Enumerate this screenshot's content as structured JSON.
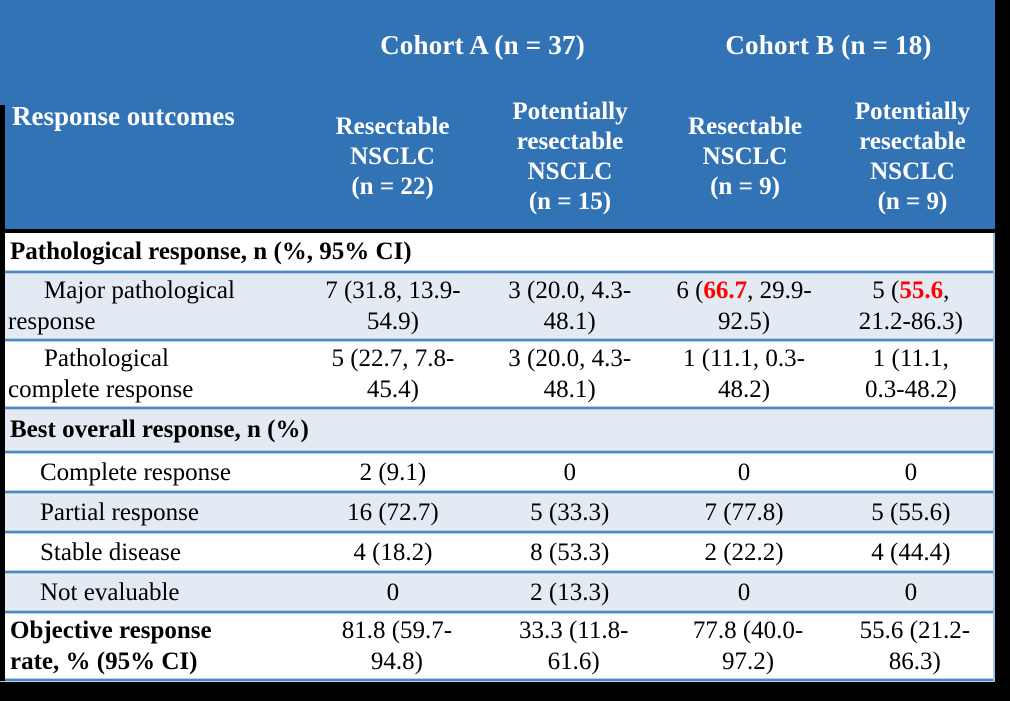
{
  "colors": {
    "header_blue": "#3273B5",
    "band_blue": "#E4EAF4",
    "separator_blue": "#4E86C2",
    "highlight_red": "#FF0000"
  },
  "header": {
    "cohort_a": "Cohort A (n = 37)",
    "cohort_b": "Cohort B (n = 18)",
    "row_label": "Response outcomes",
    "columns": [
      "Resectable\nNSCLC\n(n = 22)",
      "Potentially\nresectable\nNSCLC\n(n = 15)",
      "Resectable\nNSCLC\n(n = 9)",
      "Potentially\nresectable\nNSCLC\n(n = 9)"
    ]
  },
  "rows": {
    "section1": "Pathological response, n (%, 95% CI)",
    "mpr": {
      "label": "Major pathological\nresponse",
      "c1": "7 (31.8, 13.9-\n54.9)",
      "c2": "3 (20.0, 4.3-\n48.1)",
      "c3_pre": "6 (",
      "c3_red": "66.7",
      "c3_post": ", 29.9-\n92.5)",
      "c4_pre": "5 (",
      "c4_red": "55.6",
      "c4_post": ",\n21.2-86.3)"
    },
    "pcr": {
      "label": "Pathological\ncomplete response",
      "c1": "5 (22.7, 7.8-\n45.4)",
      "c2": "3 (20.0, 4.3-\n48.1)",
      "c3": "1 (11.1, 0.3-\n48.2)",
      "c4": "1 (11.1,\n0.3-48.2)"
    },
    "section2": "Best overall response, n (%)",
    "cr": {
      "label": "Complete response",
      "c1": "2 (9.1)",
      "c2": "0",
      "c3": "0",
      "c4": "0"
    },
    "pr": {
      "label": "Partial response",
      "c1": "16 (72.7)",
      "c2": "5 (33.3)",
      "c3": "7 (77.8)",
      "c4": "5 (55.6)"
    },
    "sd": {
      "label": "Stable disease",
      "c1": "4 (18.2)",
      "c2": "8 (53.3)",
      "c3": "2 (22.2)",
      "c4": "4 (44.4)"
    },
    "ne": {
      "label": "Not evaluable",
      "c1": "0",
      "c2": "2 (13.3)",
      "c3": "0",
      "c4": "0"
    },
    "orr": {
      "label": "Objective response\nrate, % (95% CI)",
      "c1": "81.8 (59.7-\n94.8)",
      "c2": "33.3 (11.8-\n61.6)",
      "c3": "77.8 (40.0-\n97.2)",
      "c4": "55.6 (21.2-\n86.3)"
    }
  }
}
